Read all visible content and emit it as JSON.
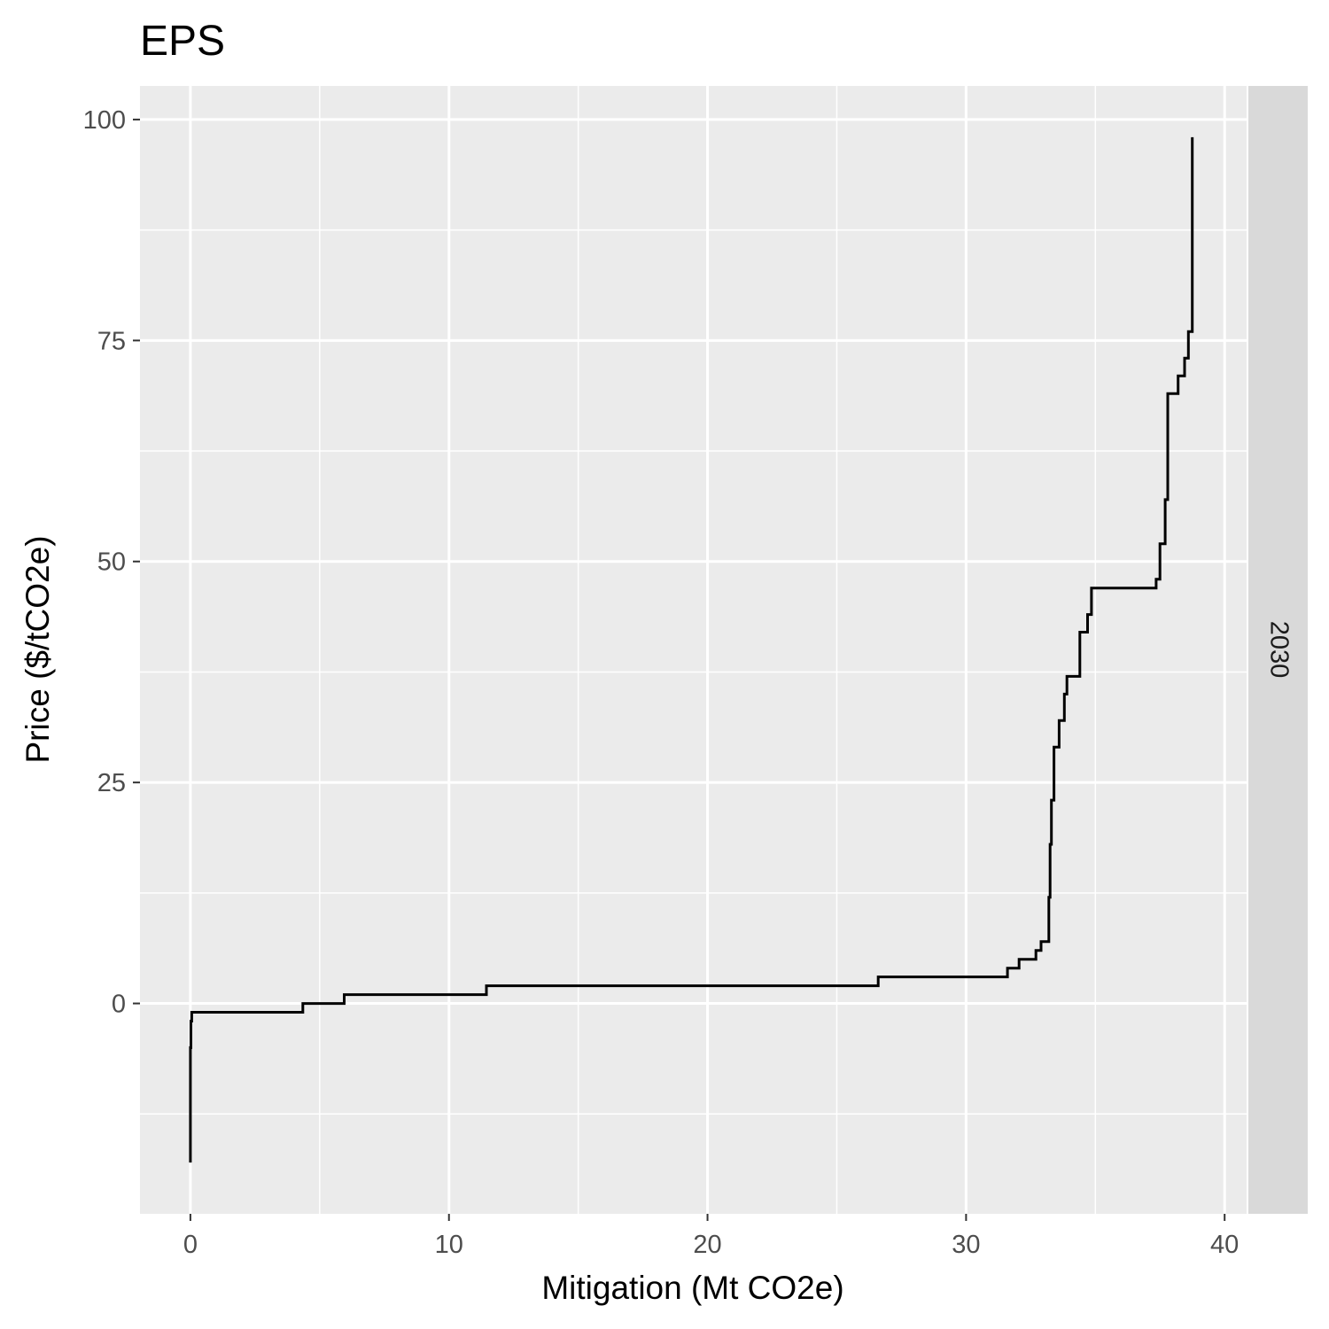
{
  "chart_data": {
    "type": "line",
    "title": "EPS",
    "xlabel": "Mitigation (Mt CO2e)",
    "ylabel": "Price ($/tCO2e)",
    "facet_label": "2030",
    "xlim": [
      -1.95,
      40.85
    ],
    "ylim": [
      -23.8,
      103.8
    ],
    "x_ticks": [
      0,
      10,
      20,
      30,
      40
    ],
    "y_ticks": [
      0,
      25,
      50,
      75,
      100
    ],
    "x_tick_labels": [
      "0",
      "10",
      "20",
      "30",
      "40"
    ],
    "y_tick_labels": [
      "0",
      "25",
      "50",
      "75",
      "100"
    ],
    "grid": true,
    "legend": "none",
    "colors": {
      "panel": "#ebebeb",
      "grid": "#ffffff",
      "line": "#000000",
      "strip": "#d9d9d9"
    },
    "series": [
      {
        "x": [
          0.0,
          0.0,
          0.02,
          0.02,
          0.05,
          0.05,
          0.2,
          0.2,
          4.35,
          4.35,
          5.95,
          5.95,
          11.45,
          11.45,
          26.6,
          26.6,
          31.6,
          31.6,
          32.05,
          32.05,
          32.7,
          32.7,
          32.9,
          32.9,
          33.2,
          33.2,
          33.25,
          33.25,
          33.3,
          33.3,
          33.4,
          33.4,
          33.6,
          33.6,
          33.8,
          33.8,
          33.9,
          33.9,
          34.0,
          34.0,
          34.4,
          34.4,
          34.7,
          34.7,
          34.85,
          34.85,
          37.35,
          37.35,
          37.5,
          37.5,
          37.7,
          37.7,
          37.8,
          37.8,
          38.2,
          38.2,
          38.45,
          38.45,
          38.6,
          38.6,
          38.75,
          38.75
        ],
        "y": [
          -18,
          -5,
          -5,
          -2,
          -2,
          -1,
          -1,
          -1,
          -1,
          0,
          0,
          1,
          1,
          2,
          2,
          3,
          3,
          4,
          4,
          5,
          5,
          6,
          6,
          7,
          7,
          12,
          12,
          18,
          18,
          23,
          23,
          29,
          29,
          32,
          32,
          35,
          35,
          37,
          37,
          37,
          37,
          42,
          42,
          44,
          44,
          47,
          47,
          48,
          48,
          52,
          52,
          57,
          57,
          69,
          69,
          71,
          71,
          73,
          73,
          76,
          76,
          98
        ]
      }
    ]
  }
}
